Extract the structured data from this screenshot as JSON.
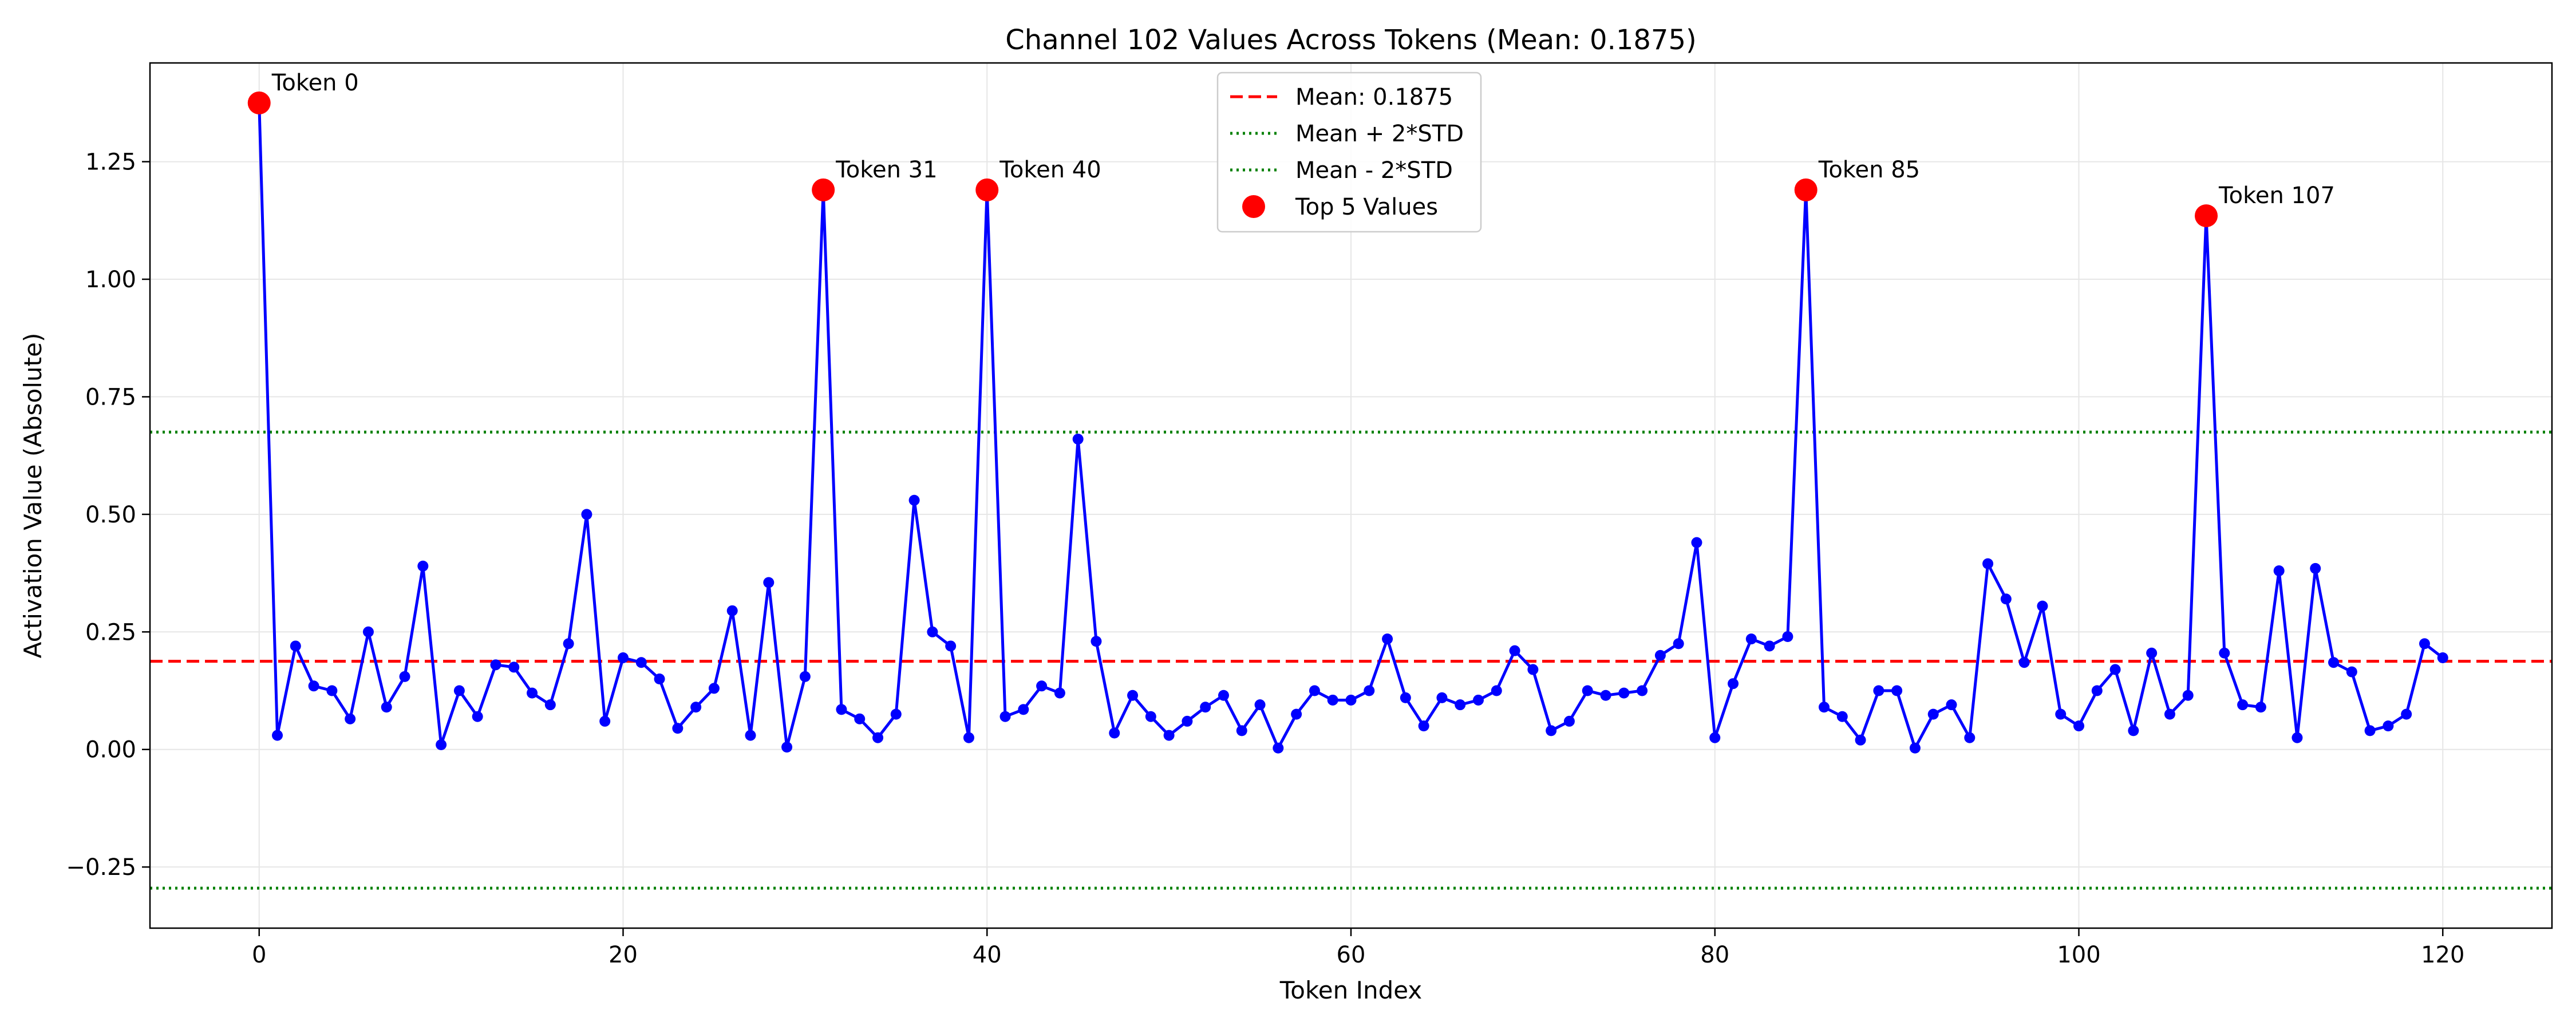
{
  "chart_data": {
    "type": "line",
    "title": "Channel 102 Values Across Tokens (Mean: 0.1875)",
    "xlabel": "Token Index",
    "ylabel": "Activation Value (Absolute)",
    "xlim": [
      -6,
      126
    ],
    "ylim": [
      -0.38,
      1.46
    ],
    "xticks": [
      0,
      20,
      40,
      60,
      80,
      100,
      120
    ],
    "yticks": [
      -0.25,
      0.0,
      0.25,
      0.5,
      0.75,
      1.0,
      1.25
    ],
    "ytick_labels": [
      "−0.25",
      "0.00",
      "0.25",
      "0.50",
      "0.75",
      "1.00",
      "1.25"
    ],
    "grid": true,
    "legend_position": "top-center",
    "series": [
      {
        "color": "#0000ff",
        "values": [
          1.375,
          0.03,
          0.22,
          0.135,
          0.125,
          0.065,
          0.25,
          0.09,
          0.155,
          0.39,
          0.01,
          0.125,
          0.07,
          0.18,
          0.175,
          0.12,
          0.095,
          0.225,
          0.5,
          0.06,
          0.195,
          0.185,
          0.15,
          0.045,
          0.09,
          0.13,
          0.295,
          0.03,
          0.355,
          0.005,
          0.155,
          1.19,
          0.085,
          0.065,
          0.025,
          0.075,
          0.53,
          0.25,
          0.22,
          0.025,
          1.19,
          0.07,
          0.085,
          0.135,
          0.12,
          0.66,
          0.23,
          0.035,
          0.115,
          0.07,
          0.03,
          0.06,
          0.09,
          0.115,
          0.04,
          0.095,
          0.003,
          0.075,
          0.125,
          0.105,
          0.105,
          0.125,
          0.235,
          0.11,
          0.05,
          0.11,
          0.095,
          0.105,
          0.125,
          0.21,
          0.17,
          0.04,
          0.06,
          0.125,
          0.115,
          0.12,
          0.125,
          0.2,
          0.225,
          0.44,
          0.025,
          0.14,
          0.235,
          0.22,
          0.24,
          1.19,
          0.09,
          0.07,
          0.02,
          0.125,
          0.125,
          0.003,
          0.075,
          0.095,
          0.025,
          0.395,
          0.32,
          0.185,
          0.305,
          0.075,
          0.05,
          0.125,
          0.17,
          0.04,
          0.205,
          0.075,
          0.115,
          1.135,
          0.205,
          0.095,
          0.09,
          0.38,
          0.025,
          0.385,
          0.185,
          0.165,
          0.04,
          0.05,
          0.075,
          0.225,
          0.195
        ]
      }
    ],
    "reference_lines": [
      {
        "label": "Mean: 0.1875",
        "value": 0.1875,
        "color": "#ff0000",
        "style": "dashed"
      },
      {
        "label": "Mean + 2*STD",
        "value": 0.675,
        "color": "#008000",
        "style": "dotted"
      },
      {
        "label": "Mean - 2*STD",
        "value": -0.295,
        "color": "#008000",
        "style": "dotted"
      }
    ],
    "top_points": {
      "label": "Top 5 Values",
      "color": "#ff0000",
      "points": [
        {
          "x": 0,
          "y": 1.375,
          "label": "Token 0"
        },
        {
          "x": 31,
          "y": 1.19,
          "label": "Token 31"
        },
        {
          "x": 40,
          "y": 1.19,
          "label": "Token 40"
        },
        {
          "x": 85,
          "y": 1.19,
          "label": "Token 85"
        },
        {
          "x": 107,
          "y": 1.135,
          "label": "Token 107"
        }
      ]
    },
    "legend": [
      {
        "label": "Mean: 0.1875",
        "kind": "line",
        "color": "#ff0000",
        "style": "dashed"
      },
      {
        "label": "Mean + 2*STD",
        "kind": "line",
        "color": "#008000",
        "style": "dotted"
      },
      {
        "label": "Mean - 2*STD",
        "kind": "line",
        "color": "#008000",
        "style": "dotted"
      },
      {
        "label": "Top 5 Values",
        "kind": "marker",
        "color": "#ff0000"
      }
    ]
  }
}
